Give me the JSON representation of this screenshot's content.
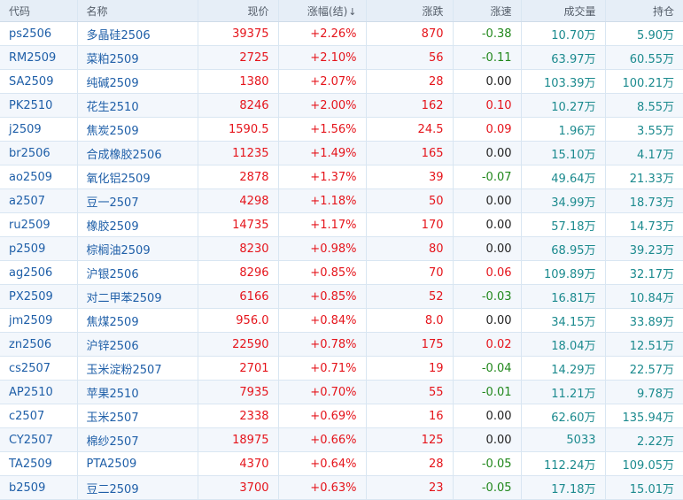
{
  "headers": {
    "code": "代码",
    "name": "名称",
    "price": "现价",
    "change_pct": "涨幅(结)",
    "sort_glyph": "↓",
    "change": "涨跌",
    "speed": "涨速",
    "volume": "成交量",
    "open_interest": "持仓"
  },
  "colors": {
    "up": "#e5141b",
    "down": "#22881d",
    "code": "#1f5fa8",
    "volume": "#1b8a8e"
  },
  "rows": [
    {
      "code": "ps2506",
      "name": "多晶硅2506",
      "price": "39375",
      "change_pct": "+2.26%",
      "change": "870",
      "speed": "-0.38",
      "volume": "10.70万",
      "open_interest": "5.90万"
    },
    {
      "code": "RM2509",
      "name": "菜粕2509",
      "price": "2725",
      "change_pct": "+2.10%",
      "change": "56",
      "speed": "-0.11",
      "volume": "63.97万",
      "open_interest": "60.55万"
    },
    {
      "code": "SA2509",
      "name": "纯碱2509",
      "price": "1380",
      "change_pct": "+2.07%",
      "change": "28",
      "speed": "0.00",
      "volume": "103.39万",
      "open_interest": "100.21万"
    },
    {
      "code": "PK2510",
      "name": "花生2510",
      "price": "8246",
      "change_pct": "+2.00%",
      "change": "162",
      "speed": "0.10",
      "volume": "10.27万",
      "open_interest": "8.55万"
    },
    {
      "code": "j2509",
      "name": "焦炭2509",
      "price": "1590.5",
      "change_pct": "+1.56%",
      "change": "24.5",
      "speed": "0.09",
      "volume": "1.96万",
      "open_interest": "3.55万"
    },
    {
      "code": "br2506",
      "name": "合成橡胶2506",
      "price": "11235",
      "change_pct": "+1.49%",
      "change": "165",
      "speed": "0.00",
      "volume": "15.10万",
      "open_interest": "4.17万"
    },
    {
      "code": "ao2509",
      "name": "氧化铝2509",
      "price": "2878",
      "change_pct": "+1.37%",
      "change": "39",
      "speed": "-0.07",
      "volume": "49.64万",
      "open_interest": "21.33万"
    },
    {
      "code": "a2507",
      "name": "豆一2507",
      "price": "4298",
      "change_pct": "+1.18%",
      "change": "50",
      "speed": "0.00",
      "volume": "34.99万",
      "open_interest": "18.73万"
    },
    {
      "code": "ru2509",
      "name": "橡胶2509",
      "price": "14735",
      "change_pct": "+1.17%",
      "change": "170",
      "speed": "0.00",
      "volume": "57.18万",
      "open_interest": "14.73万"
    },
    {
      "code": "p2509",
      "name": "棕榈油2509",
      "price": "8230",
      "change_pct": "+0.98%",
      "change": "80",
      "speed": "0.00",
      "volume": "68.95万",
      "open_interest": "39.23万"
    },
    {
      "code": "ag2506",
      "name": "沪银2506",
      "price": "8296",
      "change_pct": "+0.85%",
      "change": "70",
      "speed": "0.06",
      "volume": "109.89万",
      "open_interest": "32.17万"
    },
    {
      "code": "PX2509",
      "name": "对二甲苯2509",
      "price": "6166",
      "change_pct": "+0.85%",
      "change": "52",
      "speed": "-0.03",
      "volume": "16.81万",
      "open_interest": "10.84万"
    },
    {
      "code": "jm2509",
      "name": "焦煤2509",
      "price": "956.0",
      "change_pct": "+0.84%",
      "change": "8.0",
      "speed": "0.00",
      "volume": "34.15万",
      "open_interest": "33.89万"
    },
    {
      "code": "zn2506",
      "name": "沪锌2506",
      "price": "22590",
      "change_pct": "+0.78%",
      "change": "175",
      "speed": "0.02",
      "volume": "18.04万",
      "open_interest": "12.51万"
    },
    {
      "code": "cs2507",
      "name": "玉米淀粉2507",
      "price": "2701",
      "change_pct": "+0.71%",
      "change": "19",
      "speed": "-0.04",
      "volume": "14.29万",
      "open_interest": "22.57万"
    },
    {
      "code": "AP2510",
      "name": "苹果2510",
      "price": "7935",
      "change_pct": "+0.70%",
      "change": "55",
      "speed": "-0.01",
      "volume": "11.21万",
      "open_interest": "9.78万"
    },
    {
      "code": "c2507",
      "name": "玉米2507",
      "price": "2338",
      "change_pct": "+0.69%",
      "change": "16",
      "speed": "0.00",
      "volume": "62.60万",
      "open_interest": "135.94万"
    },
    {
      "code": "CY2507",
      "name": "棉纱2507",
      "price": "18975",
      "change_pct": "+0.66%",
      "change": "125",
      "speed": "0.00",
      "volume": "5033",
      "open_interest": "2.22万"
    },
    {
      "code": "TA2509",
      "name": "PTA2509",
      "price": "4370",
      "change_pct": "+0.64%",
      "change": "28",
      "speed": "-0.05",
      "volume": "112.24万",
      "open_interest": "109.05万"
    },
    {
      "code": "b2509",
      "name": "豆二2509",
      "price": "3700",
      "change_pct": "+0.63%",
      "change": "23",
      "speed": "-0.05",
      "volume": "17.18万",
      "open_interest": "15.01万"
    }
  ]
}
